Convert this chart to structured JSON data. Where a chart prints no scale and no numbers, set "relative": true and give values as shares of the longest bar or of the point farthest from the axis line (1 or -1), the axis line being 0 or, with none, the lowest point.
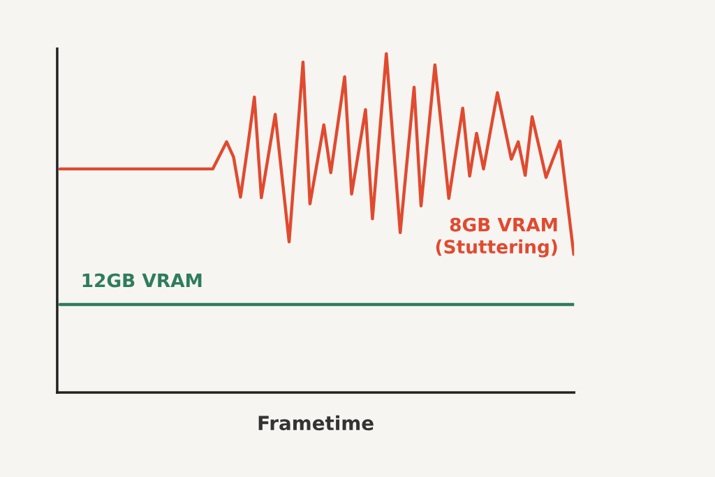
{
  "chart_data": {
    "type": "line",
    "relative": true,
    "xlabel": "Frametime",
    "legend": false,
    "marker": "none",
    "line_style": "solid",
    "categories": [
      null,
      null,
      null,
      null,
      null,
      null,
      null,
      null,
      null,
      null,
      null,
      null,
      null,
      null,
      null,
      null,
      null,
      null,
      null,
      null,
      null,
      null,
      null,
      null,
      null,
      null,
      null,
      null,
      null,
      null,
      null,
      null,
      null,
      null,
      null,
      null,
      null,
      null,
      null,
      null,
      null,
      null,
      null,
      null,
      null,
      null,
      null,
      null,
      null,
      null,
      null,
      null,
      null,
      null,
      null,
      null,
      null,
      null,
      null,
      null,
      null,
      null,
      null,
      null,
      null,
      null,
      null,
      null,
      null,
      null,
      null,
      null,
      null,
      null,
      null
    ],
    "series": [
      {
        "name": "8GB VRAM\n(Stuttering)",
        "color": "#e04a2f",
        "values": [
          0.66,
          0.66,
          0.66,
          0.66,
          0.66,
          0.66,
          0.66,
          0.66,
          0.66,
          0.66,
          0.66,
          0.66,
          0.66,
          0.66,
          0.66,
          0.66,
          0.66,
          0.66,
          0.66,
          0.66,
          0.66,
          0.66,
          0.66,
          0.7,
          0.74,
          0.695,
          0.577,
          0.72,
          0.872,
          0.575,
          0.698,
          0.821,
          0.633,
          0.445,
          0.71,
          0.975,
          0.557,
          0.674,
          0.79,
          0.649,
          0.79,
          0.932,
          0.586,
          0.71,
          0.835,
          0.513,
          0.757,
          1.0,
          0.736,
          0.472,
          0.687,
          0.901,
          0.551,
          0.759,
          0.967,
          0.77,
          0.573,
          0.706,
          0.839,
          0.639,
          0.765,
          0.66,
          0.773,
          0.885,
          0.787,
          0.689,
          0.74,
          0.641,
          0.814,
          0.725,
          0.635,
          0.689,
          0.742,
          0.575,
          0.408
        ]
      },
      {
        "name": "12GB VRAM",
        "color": "#2e7d5b",
        "values": [
          0.26,
          0.26,
          0.26,
          0.26,
          0.26,
          0.26,
          0.26,
          0.26,
          0.26,
          0.26,
          0.26,
          0.26,
          0.26,
          0.26,
          0.26,
          0.26,
          0.26,
          0.26,
          0.26,
          0.26,
          0.26,
          0.26,
          0.26,
          0.26,
          0.26,
          0.26,
          0.26,
          0.26,
          0.26,
          0.26,
          0.26,
          0.26,
          0.26,
          0.26,
          0.26,
          0.26,
          0.26,
          0.26,
          0.26,
          0.26,
          0.26,
          0.26,
          0.26,
          0.26,
          0.26,
          0.26,
          0.26,
          0.26,
          0.26,
          0.26,
          0.26,
          0.26,
          0.26,
          0.26,
          0.26,
          0.26,
          0.26,
          0.26,
          0.26,
          0.26,
          0.26,
          0.26,
          0.26,
          0.26,
          0.26,
          0.26,
          0.26,
          0.26,
          0.26,
          0.26,
          0.26,
          0.26,
          0.26,
          0.26,
          0.26
        ]
      }
    ]
  }
}
